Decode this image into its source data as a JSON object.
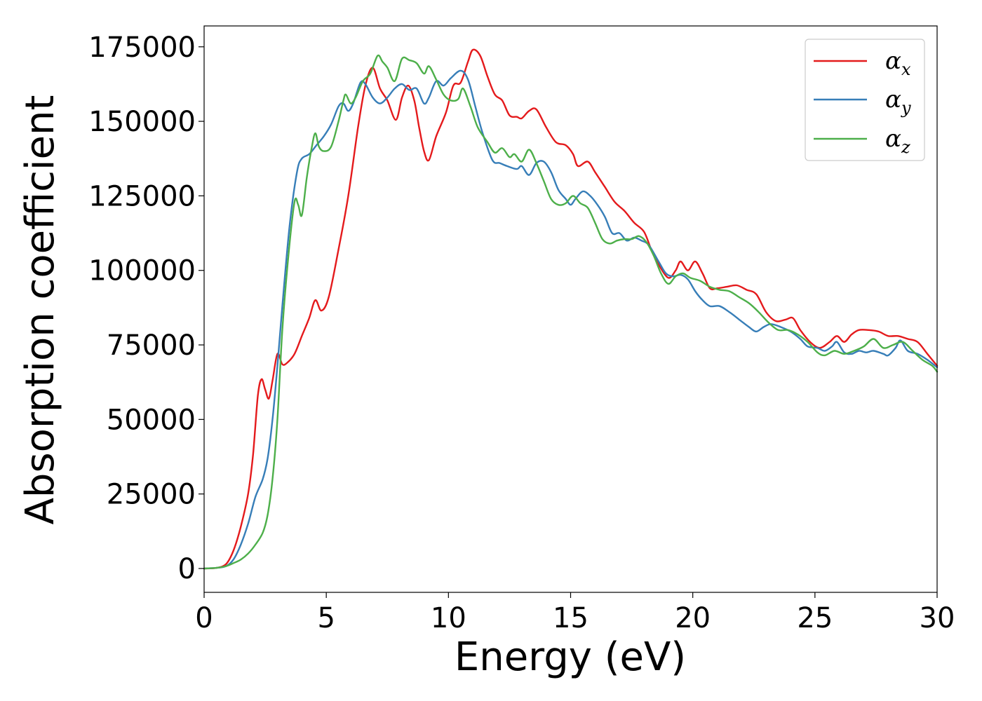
{
  "chart_data": {
    "type": "line",
    "title": "",
    "xlabel": "Energy (eV)",
    "ylabel": "Absorption coefficient",
    "xlim": [
      0,
      30
    ],
    "ylim": [
      -8000,
      182000
    ],
    "x_ticks": [
      0,
      5,
      10,
      15,
      20,
      25,
      30
    ],
    "x_tick_labels": [
      "0",
      "5",
      "10",
      "15",
      "20",
      "25",
      "30"
    ],
    "y_ticks": [
      0,
      25000,
      50000,
      75000,
      100000,
      125000,
      150000,
      175000
    ],
    "y_tick_labels": [
      "0",
      "25000",
      "50000",
      "75000",
      "100000",
      "125000",
      "150000",
      "175000"
    ],
    "grid": false,
    "legend_position": "top-right",
    "series": [
      {
        "name": "αx",
        "label_symbol": "α",
        "label_subscript": "x",
        "color": "#e41a1c",
        "points": [
          [
            0,
            0
          ],
          [
            0.5,
            200
          ],
          [
            0.9,
            1500
          ],
          [
            1.2,
            6000
          ],
          [
            1.5,
            14000
          ],
          [
            1.8,
            25000
          ],
          [
            2.0,
            38000
          ],
          [
            2.2,
            58000
          ],
          [
            2.35,
            63500
          ],
          [
            2.5,
            60000
          ],
          [
            2.65,
            57000
          ],
          [
            2.8,
            63000
          ],
          [
            3.0,
            72000
          ],
          [
            3.2,
            68500
          ],
          [
            3.4,
            69000
          ],
          [
            3.7,
            72000
          ],
          [
            4.0,
            78000
          ],
          [
            4.3,
            84000
          ],
          [
            4.55,
            90000
          ],
          [
            4.8,
            86500
          ],
          [
            5.1,
            91000
          ],
          [
            5.5,
            107000
          ],
          [
            5.9,
            125000
          ],
          [
            6.3,
            148000
          ],
          [
            6.6,
            162000
          ],
          [
            6.9,
            168000
          ],
          [
            7.2,
            161000
          ],
          [
            7.5,
            157000
          ],
          [
            7.85,
            150500
          ],
          [
            8.1,
            158000
          ],
          [
            8.35,
            162000
          ],
          [
            8.6,
            157000
          ],
          [
            8.8,
            148000
          ],
          [
            9.0,
            140000
          ],
          [
            9.2,
            137000
          ],
          [
            9.5,
            145000
          ],
          [
            9.9,
            153000
          ],
          [
            10.2,
            162000
          ],
          [
            10.5,
            163000
          ],
          [
            10.8,
            170000
          ],
          [
            11.0,
            174000
          ],
          [
            11.3,
            172000
          ],
          [
            11.6,
            165000
          ],
          [
            11.9,
            159000
          ],
          [
            12.2,
            157000
          ],
          [
            12.5,
            152000
          ],
          [
            12.8,
            151500
          ],
          [
            13.0,
            151000
          ],
          [
            13.3,
            153500
          ],
          [
            13.6,
            154000
          ],
          [
            14.0,
            148000
          ],
          [
            14.4,
            143000
          ],
          [
            14.8,
            142000
          ],
          [
            15.1,
            139000
          ],
          [
            15.3,
            135000
          ],
          [
            15.7,
            136500
          ],
          [
            16.0,
            133000
          ],
          [
            16.4,
            128000
          ],
          [
            16.8,
            123000
          ],
          [
            17.2,
            120000
          ],
          [
            17.6,
            116000
          ],
          [
            18.0,
            113000
          ],
          [
            18.3,
            107000
          ],
          [
            18.6,
            102000
          ],
          [
            19.0,
            97500
          ],
          [
            19.3,
            100000
          ],
          [
            19.5,
            103000
          ],
          [
            19.8,
            100000
          ],
          [
            20.1,
            103000
          ],
          [
            20.4,
            99000
          ],
          [
            20.7,
            94000
          ],
          [
            21.0,
            94000
          ],
          [
            21.4,
            94500
          ],
          [
            21.8,
            95000
          ],
          [
            22.2,
            93500
          ],
          [
            22.6,
            92000
          ],
          [
            23.0,
            86000
          ],
          [
            23.4,
            83000
          ],
          [
            23.8,
            83500
          ],
          [
            24.1,
            84000
          ],
          [
            24.4,
            80000
          ],
          [
            24.8,
            76000
          ],
          [
            25.2,
            74000
          ],
          [
            25.6,
            76000
          ],
          [
            25.9,
            78000
          ],
          [
            26.2,
            76000
          ],
          [
            26.5,
            78500
          ],
          [
            26.8,
            80000
          ],
          [
            27.2,
            80000
          ],
          [
            27.6,
            79500
          ],
          [
            28.0,
            78000
          ],
          [
            28.4,
            78000
          ],
          [
            28.8,
            77000
          ],
          [
            29.2,
            76000
          ],
          [
            29.6,
            72000
          ],
          [
            30.0,
            68000
          ]
        ]
      },
      {
        "name": "αy",
        "label_symbol": "α",
        "label_subscript": "y",
        "color": "#377eb8",
        "points": [
          [
            0,
            0
          ],
          [
            0.5,
            200
          ],
          [
            0.9,
            800
          ],
          [
            1.2,
            3000
          ],
          [
            1.5,
            8000
          ],
          [
            1.8,
            15000
          ],
          [
            2.1,
            24000
          ],
          [
            2.4,
            30000
          ],
          [
            2.6,
            37000
          ],
          [
            2.8,
            50000
          ],
          [
            3.0,
            68000
          ],
          [
            3.2,
            88000
          ],
          [
            3.5,
            115000
          ],
          [
            3.8,
            133000
          ],
          [
            4.0,
            137500
          ],
          [
            4.3,
            139000
          ],
          [
            4.6,
            142000
          ],
          [
            4.9,
            145000
          ],
          [
            5.2,
            149000
          ],
          [
            5.5,
            155000
          ],
          [
            5.7,
            156000
          ],
          [
            5.9,
            153500
          ],
          [
            6.1,
            156000
          ],
          [
            6.4,
            163000
          ],
          [
            6.6,
            162500
          ],
          [
            6.9,
            158000
          ],
          [
            7.2,
            156000
          ],
          [
            7.5,
            158000
          ],
          [
            7.8,
            161000
          ],
          [
            8.1,
            162500
          ],
          [
            8.4,
            160500
          ],
          [
            8.7,
            161000
          ],
          [
            9.0,
            156000
          ],
          [
            9.2,
            158000
          ],
          [
            9.5,
            163500
          ],
          [
            9.8,
            162000
          ],
          [
            10.1,
            164500
          ],
          [
            10.5,
            167000
          ],
          [
            10.8,
            164000
          ],
          [
            11.1,
            155000
          ],
          [
            11.4,
            146000
          ],
          [
            11.8,
            137000
          ],
          [
            12.1,
            136000
          ],
          [
            12.4,
            135000
          ],
          [
            12.8,
            134000
          ],
          [
            13.0,
            135000
          ],
          [
            13.3,
            132000
          ],
          [
            13.6,
            136000
          ],
          [
            13.9,
            136500
          ],
          [
            14.2,
            133000
          ],
          [
            14.5,
            127000
          ],
          [
            14.8,
            124000
          ],
          [
            15.0,
            122000
          ],
          [
            15.2,
            124000
          ],
          [
            15.5,
            126500
          ],
          [
            15.8,
            125000
          ],
          [
            16.1,
            122000
          ],
          [
            16.4,
            118000
          ],
          [
            16.7,
            112500
          ],
          [
            17.0,
            112500
          ],
          [
            17.3,
            110000
          ],
          [
            17.6,
            111000
          ],
          [
            17.9,
            110000
          ],
          [
            18.2,
            108500
          ],
          [
            18.6,
            103000
          ],
          [
            18.9,
            99000
          ],
          [
            19.2,
            98000
          ],
          [
            19.5,
            98500
          ],
          [
            19.8,
            97000
          ],
          [
            20.1,
            93000
          ],
          [
            20.4,
            90000
          ],
          [
            20.7,
            88000
          ],
          [
            21.1,
            88000
          ],
          [
            21.5,
            86000
          ],
          [
            21.9,
            83500
          ],
          [
            22.3,
            81000
          ],
          [
            22.6,
            79500
          ],
          [
            22.9,
            81000
          ],
          [
            23.2,
            82000
          ],
          [
            23.6,
            81000
          ],
          [
            24.0,
            79500
          ],
          [
            24.4,
            77000
          ],
          [
            24.7,
            74500
          ],
          [
            25.1,
            74000
          ],
          [
            25.4,
            73000
          ],
          [
            25.7,
            74500
          ],
          [
            25.9,
            76000
          ],
          [
            26.2,
            72500
          ],
          [
            26.5,
            72000
          ],
          [
            26.8,
            73000
          ],
          [
            27.1,
            72500
          ],
          [
            27.4,
            73000
          ],
          [
            27.8,
            72000
          ],
          [
            28.0,
            71500
          ],
          [
            28.3,
            74000
          ],
          [
            28.5,
            76500
          ],
          [
            28.8,
            73000
          ],
          [
            29.2,
            72000
          ],
          [
            29.6,
            70000
          ],
          [
            30.0,
            67500
          ]
        ]
      },
      {
        "name": "αz",
        "label_symbol": "α",
        "label_subscript": "z",
        "color": "#4daf4a",
        "points": [
          [
            0,
            0
          ],
          [
            0.5,
            200
          ],
          [
            0.9,
            800
          ],
          [
            1.2,
            1800
          ],
          [
            1.5,
            3000
          ],
          [
            1.8,
            5000
          ],
          [
            2.1,
            8000
          ],
          [
            2.4,
            12000
          ],
          [
            2.6,
            18000
          ],
          [
            2.8,
            30000
          ],
          [
            3.0,
            50000
          ],
          [
            3.2,
            80000
          ],
          [
            3.45,
            105000
          ],
          [
            3.7,
            123000
          ],
          [
            3.85,
            122000
          ],
          [
            4.0,
            118500
          ],
          [
            4.2,
            131000
          ],
          [
            4.4,
            141000
          ],
          [
            4.55,
            146000
          ],
          [
            4.7,
            141500
          ],
          [
            4.9,
            140000
          ],
          [
            5.2,
            141500
          ],
          [
            5.5,
            150000
          ],
          [
            5.7,
            157000
          ],
          [
            5.8,
            159000
          ],
          [
            6.0,
            156000
          ],
          [
            6.2,
            158000
          ],
          [
            6.5,
            163500
          ],
          [
            6.8,
            166000
          ],
          [
            7.1,
            172000
          ],
          [
            7.3,
            170000
          ],
          [
            7.5,
            168000
          ],
          [
            7.8,
            163500
          ],
          [
            8.1,
            171000
          ],
          [
            8.4,
            170500
          ],
          [
            8.7,
            169500
          ],
          [
            9.0,
            166000
          ],
          [
            9.2,
            168500
          ],
          [
            9.5,
            164000
          ],
          [
            9.8,
            159000
          ],
          [
            10.1,
            157000
          ],
          [
            10.4,
            157500
          ],
          [
            10.6,
            161000
          ],
          [
            10.9,
            155000
          ],
          [
            11.2,
            148000
          ],
          [
            11.6,
            143000
          ],
          [
            11.9,
            139500
          ],
          [
            12.2,
            141000
          ],
          [
            12.5,
            138000
          ],
          [
            12.7,
            139000
          ],
          [
            13.0,
            136500
          ],
          [
            13.3,
            140500
          ],
          [
            13.6,
            136000
          ],
          [
            13.9,
            130000
          ],
          [
            14.2,
            124000
          ],
          [
            14.5,
            122000
          ],
          [
            14.8,
            122500
          ],
          [
            15.1,
            125000
          ],
          [
            15.4,
            122500
          ],
          [
            15.7,
            121000
          ],
          [
            16.0,
            116000
          ],
          [
            16.3,
            110500
          ],
          [
            16.6,
            109000
          ],
          [
            16.9,
            110000
          ],
          [
            17.2,
            110500
          ],
          [
            17.5,
            110500
          ],
          [
            17.8,
            111500
          ],
          [
            18.1,
            109500
          ],
          [
            18.4,
            105000
          ],
          [
            18.7,
            99000
          ],
          [
            19.0,
            95500
          ],
          [
            19.3,
            98000
          ],
          [
            19.6,
            99000
          ],
          [
            19.9,
            97500
          ],
          [
            20.3,
            96500
          ],
          [
            20.7,
            94500
          ],
          [
            21.1,
            93500
          ],
          [
            21.5,
            93000
          ],
          [
            21.9,
            91000
          ],
          [
            22.3,
            89000
          ],
          [
            22.7,
            86000
          ],
          [
            23.1,
            82500
          ],
          [
            23.5,
            80000
          ],
          [
            23.9,
            80000
          ],
          [
            24.3,
            78500
          ],
          [
            24.7,
            76000
          ],
          [
            25.1,
            72500
          ],
          [
            25.4,
            71500
          ],
          [
            25.8,
            73000
          ],
          [
            26.2,
            72000
          ],
          [
            26.6,
            73000
          ],
          [
            27.0,
            74500
          ],
          [
            27.4,
            77000
          ],
          [
            27.8,
            74000
          ],
          [
            28.2,
            75000
          ],
          [
            28.6,
            76000
          ],
          [
            29.0,
            73000
          ],
          [
            29.4,
            70000
          ],
          [
            29.8,
            68000
          ],
          [
            30.0,
            66000
          ]
        ]
      }
    ]
  }
}
